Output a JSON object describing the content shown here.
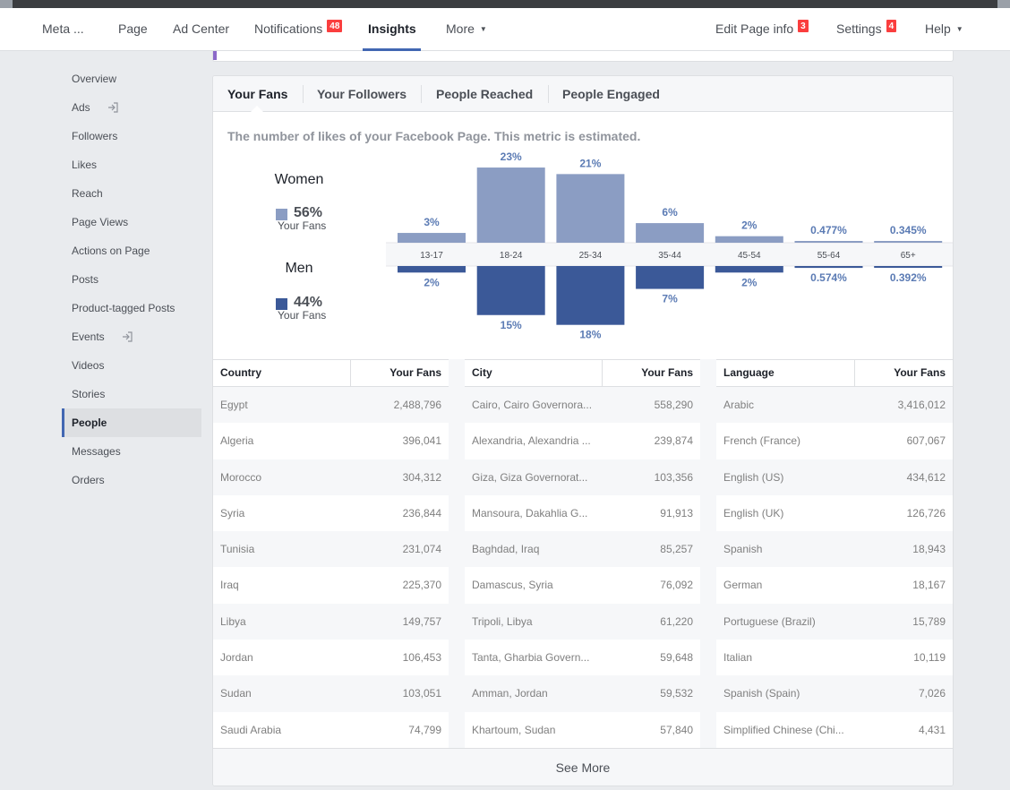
{
  "topnav": {
    "items": [
      {
        "label": "Meta ...",
        "x": 47,
        "badge": ""
      },
      {
        "label": "Page",
        "x": 132,
        "badge": ""
      },
      {
        "label": "Ad Center",
        "x": 193,
        "badge": ""
      },
      {
        "label": "Notifications",
        "x": 284,
        "badge": "48"
      },
      {
        "label": "Insights",
        "x": 411,
        "badge": "",
        "active": true
      },
      {
        "label": "More",
        "x": 498,
        "badge": "",
        "caret": true
      },
      {
        "label": "Edit Page info",
        "x": 799,
        "badge": "3"
      },
      {
        "label": "Settings",
        "x": 934,
        "badge": "4"
      },
      {
        "label": "Help",
        "x": 1033,
        "badge": "",
        "caret": true
      }
    ]
  },
  "sidebar": {
    "items": [
      {
        "label": "Overview"
      },
      {
        "label": "Ads",
        "icon": "external-link-icon"
      },
      {
        "label": "Followers"
      },
      {
        "label": "Likes"
      },
      {
        "label": "Reach"
      },
      {
        "label": "Page Views"
      },
      {
        "label": "Actions on Page"
      },
      {
        "label": "Posts"
      },
      {
        "label": "Product-tagged Posts"
      },
      {
        "label": "Events",
        "icon": "external-link-icon"
      },
      {
        "label": "Videos"
      },
      {
        "label": "Stories"
      },
      {
        "label": "People",
        "active": true
      },
      {
        "label": "Messages"
      },
      {
        "label": "Orders"
      }
    ]
  },
  "tabs": {
    "your_fans": "Your Fans",
    "your_followers": "Your Followers",
    "people_reached": "People Reached",
    "people_engaged": "People Engaged"
  },
  "subtitle": "The number of likes of your Facebook Page. This metric is estimated.",
  "legend": {
    "women": {
      "label": "Women",
      "pct": "56%",
      "sub": "Your Fans",
      "color": "#8b9dc3"
    },
    "men": {
      "label": "Men",
      "pct": "44%",
      "sub": "Your Fans",
      "color": "#3b5998"
    }
  },
  "chart_data": {
    "type": "bar",
    "categories": [
      "13-17",
      "18-24",
      "25-34",
      "35-44",
      "45-54",
      "55-64",
      "65+"
    ],
    "series": [
      {
        "name": "Women",
        "values": [
          3,
          23,
          21,
          6,
          2,
          0.477,
          0.345
        ],
        "labels": [
          "3%",
          "23%",
          "21%",
          "6%",
          "2%",
          "0.477%",
          "0.345%"
        ],
        "color": "#8b9dc3"
      },
      {
        "name": "Men",
        "values": [
          2,
          15,
          18,
          7,
          2,
          0.574,
          0.392
        ],
        "labels": [
          "2%",
          "15%",
          "18%",
          "7%",
          "2%",
          "0.574%",
          "0.392%"
        ],
        "color": "#3b5998"
      }
    ]
  },
  "tables": {
    "country": {
      "headers": [
        "Country",
        "Your Fans"
      ],
      "rows": [
        [
          "Egypt",
          "2,488,796"
        ],
        [
          "Algeria",
          "396,041"
        ],
        [
          "Morocco",
          "304,312"
        ],
        [
          "Syria",
          "236,844"
        ],
        [
          "Tunisia",
          "231,074"
        ],
        [
          "Iraq",
          "225,370"
        ],
        [
          "Libya",
          "149,757"
        ],
        [
          "Jordan",
          "106,453"
        ],
        [
          "Sudan",
          "103,051"
        ],
        [
          "Saudi Arabia",
          "74,799"
        ]
      ]
    },
    "city": {
      "headers": [
        "City",
        "Your Fans"
      ],
      "rows": [
        [
          "Cairo, Cairo Governora...",
          "558,290"
        ],
        [
          "Alexandria, Alexandria ...",
          "239,874"
        ],
        [
          "Giza, Giza Governorat...",
          "103,356"
        ],
        [
          "Mansoura, Dakahlia G...",
          "91,913"
        ],
        [
          "Baghdad, Iraq",
          "85,257"
        ],
        [
          "Damascus, Syria",
          "76,092"
        ],
        [
          "Tripoli, Libya",
          "61,220"
        ],
        [
          "Tanta, Gharbia Govern...",
          "59,648"
        ],
        [
          "Amman, Jordan",
          "59,532"
        ],
        [
          "Khartoum, Sudan",
          "57,840"
        ]
      ]
    },
    "language": {
      "headers": [
        "Language",
        "Your Fans"
      ],
      "rows": [
        [
          "Arabic",
          "3,416,012"
        ],
        [
          "French (France)",
          "607,067"
        ],
        [
          "English (US)",
          "434,612"
        ],
        [
          "English (UK)",
          "126,726"
        ],
        [
          "Spanish",
          "18,943"
        ],
        [
          "German",
          "18,167"
        ],
        [
          "Portuguese (Brazil)",
          "15,789"
        ],
        [
          "Italian",
          "10,119"
        ],
        [
          "Spanish (Spain)",
          "7,026"
        ],
        [
          "Simplified Chinese (Chi...",
          "4,431"
        ]
      ]
    }
  },
  "see_more": "See More"
}
